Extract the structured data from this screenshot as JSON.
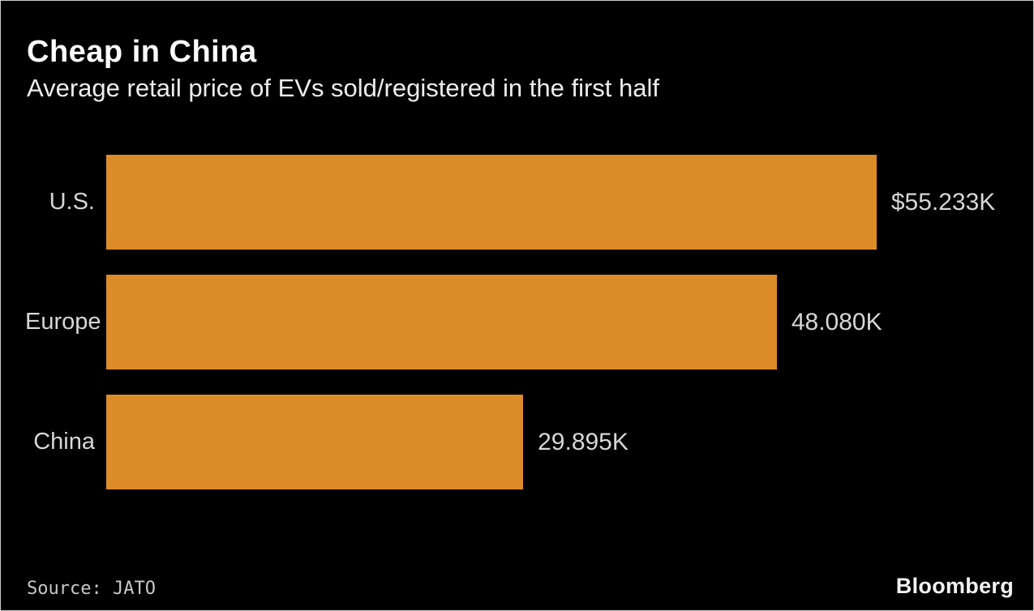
{
  "chart": {
    "title": "Cheap in China",
    "subtitle": "Average retail price of EVs sold/registered in the first half",
    "source": "Source: JATO",
    "brand": "Bloomberg"
  },
  "colors": {
    "background": "#000000",
    "bar": "#db8c28",
    "title_text": "#ffffff",
    "label_text": "#d6d6d6"
  },
  "chart_data": {
    "type": "bar",
    "orientation": "horizontal",
    "title": "Cheap in China",
    "subtitle": "Average retail price of EVs sold/registered in the first half",
    "categories": [
      "U.S.",
      "Europe",
      "China"
    ],
    "values": [
      55.233,
      48.08,
      29.895
    ],
    "value_labels": [
      "$55.233K",
      "48.080K",
      "29.895K"
    ],
    "unit": "thousand USD",
    "xlim": [
      0,
      66
    ],
    "grid": false,
    "legend": "none",
    "bar_color": "#db8c28",
    "source": "Source: JATO"
  }
}
